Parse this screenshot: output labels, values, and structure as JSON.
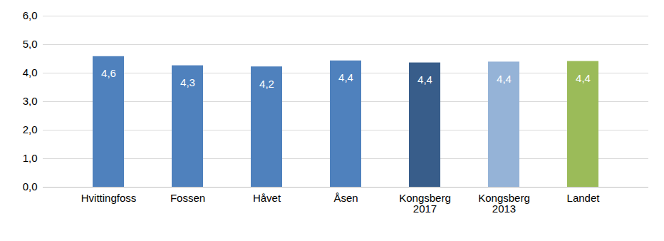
{
  "chart_data": {
    "type": "bar",
    "categories": [
      "Hvittingfoss",
      "Fossen",
      "Håvet",
      "Åsen",
      "Kongsberg 2017",
      "Kongsberg 2013",
      "Landet"
    ],
    "values": [
      4.58,
      4.26,
      4.22,
      4.43,
      4.36,
      4.39,
      4.41
    ],
    "value_labels": [
      "4,6",
      "4,3",
      "4,2",
      "4,4",
      "4,4",
      "4,4",
      "4,4"
    ],
    "colors": [
      "#4f81bd",
      "#4f81bd",
      "#4f81bd",
      "#4f81bd",
      "#385d8a",
      "#95b3d7",
      "#9bbb59"
    ],
    "ylim": [
      0,
      6
    ],
    "yticks": [
      {
        "value": 0,
        "label": "0,0"
      },
      {
        "value": 1,
        "label": "1,0"
      },
      {
        "value": 2,
        "label": "2,0"
      },
      {
        "value": 3,
        "label": "3,0"
      },
      {
        "value": 4,
        "label": "4,0"
      },
      {
        "value": 5,
        "label": "5,0"
      },
      {
        "value": 6,
        "label": "6,0"
      }
    ],
    "grid": true,
    "data_labels": true
  }
}
